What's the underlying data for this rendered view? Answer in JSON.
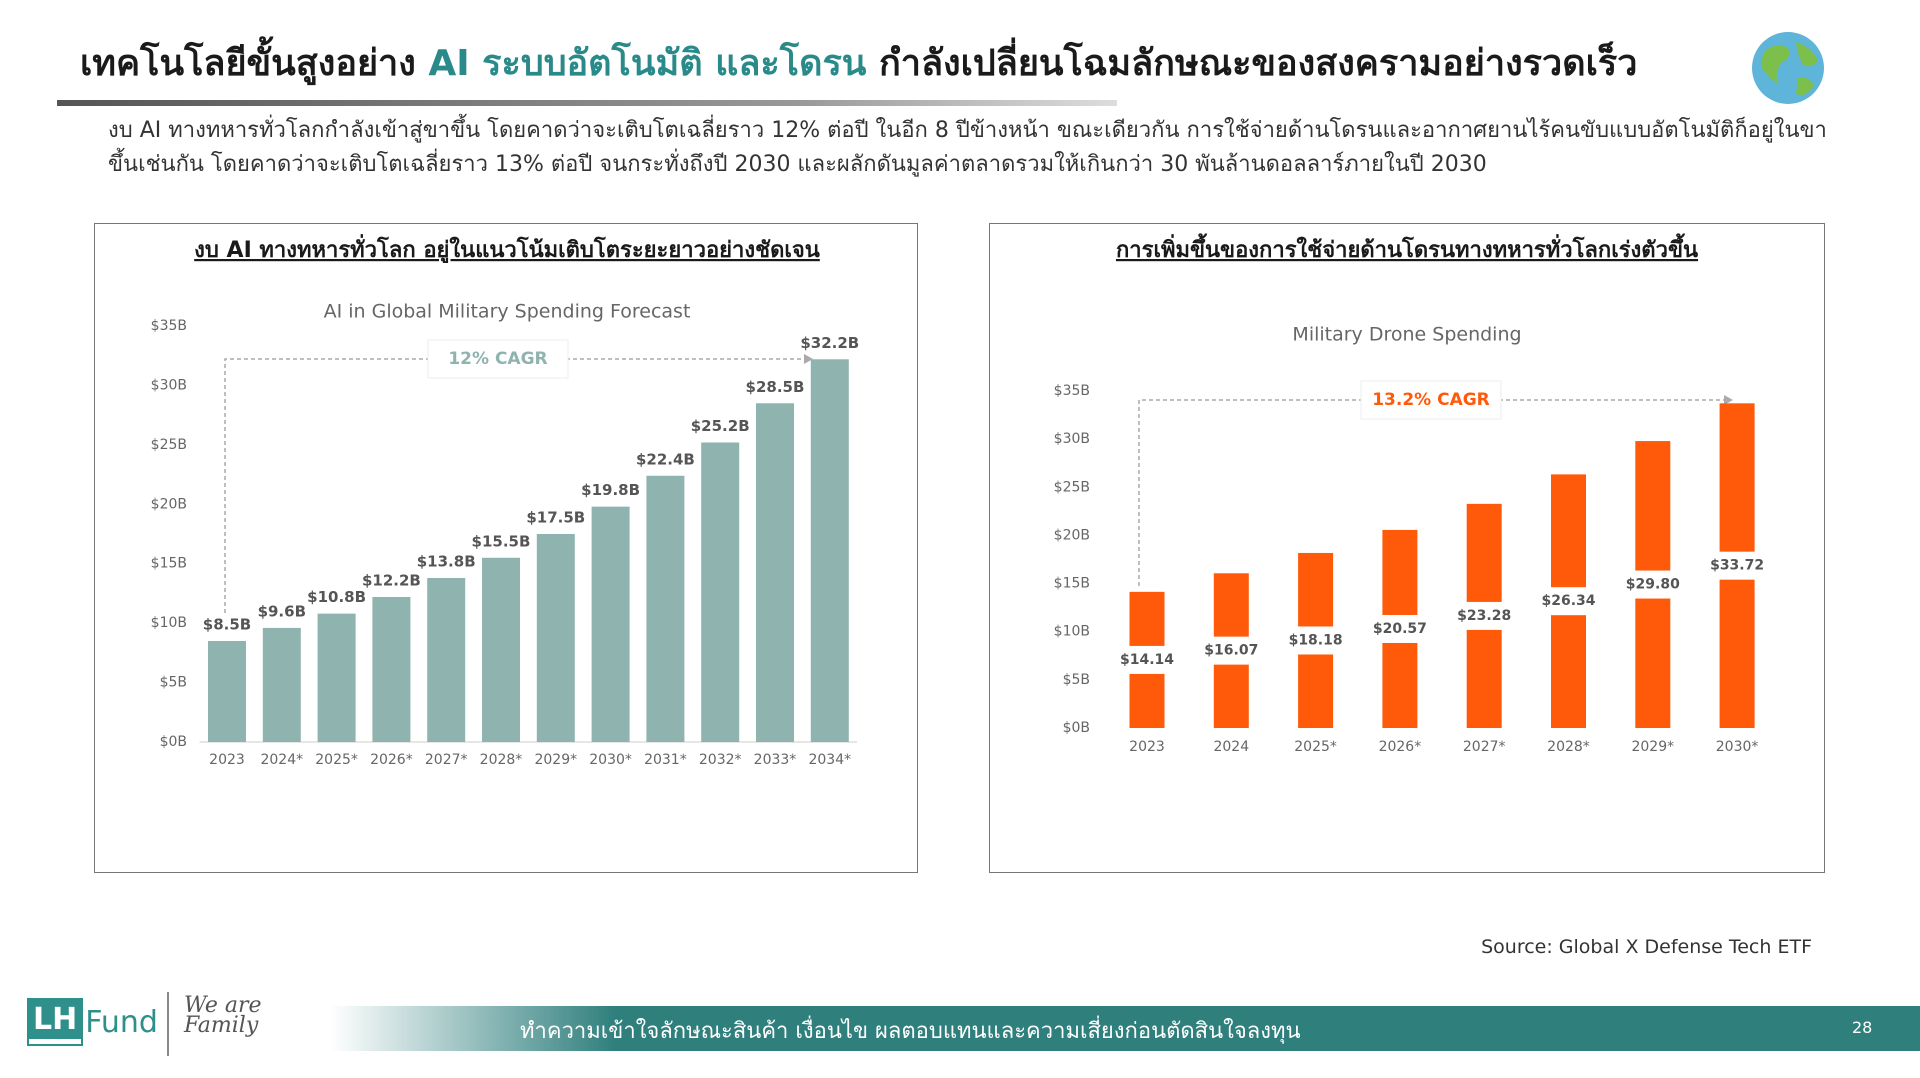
{
  "header": {
    "title": [
      "เทคโนโลยีขั้นสูงอย่าง",
      "AI ระบบอัตโนมัติ และโดรน",
      "กำลังเปลี่ยนโฉมลักษณะของสงครามอย่างรวดเร็ว"
    ],
    "description": "งบ AI ทางทหารทั่วโลกกำลังเข้าสู่ขาขึ้น โดยคาดว่าจะเติบโตเฉลี่ยราว 12% ต่อปี ในอีก 8 ปีข้างหน้า ขณะเดียวกัน การใช้จ่ายด้านโดรนและอากาศยานไร้คนขับแบบอัตโนมัติก็อยู่ในขาขึ้นเช่นกัน โดยคาดว่าจะเติบโตเฉลี่ยราว 13% ต่อปี จนกระทั่งถึงปี 2030 และผลักดันมูลค่าตลาดรวมให้เกินกว่า 30 พันล้านดอลลาร์ภายในปี 2030"
  },
  "chart_data": [
    {
      "type": "bar",
      "heading": "งบ AI ทางทหารทั่วโลก อยู่ในแนวโน้มเติบโตระยะยาวอย่างชัดเจน",
      "title": "AI in Global Military Spending Forecast",
      "categories": [
        "2023",
        "2024*",
        "2025*",
        "2026*",
        "2027*",
        "2028*",
        "2029*",
        "2030*",
        "2031*",
        "2032*",
        "2033*",
        "2034*"
      ],
      "values": [
        8.5,
        9.6,
        10.8,
        12.2,
        13.8,
        15.5,
        17.5,
        19.8,
        22.4,
        25.2,
        28.5,
        32.2
      ],
      "value_labels": [
        "$8.5B",
        "$9.6B",
        "$10.8B",
        "$12.2B",
        "$13.8B",
        "$15.5B",
        "$17.5B",
        "$19.8B",
        "$22.4B",
        "$25.2B",
        "$28.5B",
        "$32.2B"
      ],
      "value_label_position": "above",
      "color": "#8fb3ae",
      "annotation": "12% CAGR",
      "ylim": [
        0,
        35
      ],
      "yticks": [
        {
          "value": 0,
          "label": "$0B"
        },
        {
          "value": 5,
          "label": "$5B"
        },
        {
          "value": 10,
          "label": "$10B"
        },
        {
          "value": 15,
          "label": "$15B"
        },
        {
          "value": 20,
          "label": "$20B"
        },
        {
          "value": 25,
          "label": "$25B"
        },
        {
          "value": 30,
          "label": "$30B"
        },
        {
          "value": 35,
          "label": "$35B"
        }
      ]
    },
    {
      "type": "bar",
      "heading": "การเพิ่มขึ้นของการใช้จ่ายด้านโดรนทางทหารทั่วโลกเร่งตัวขึ้น",
      "title": "Military Drone Spending",
      "categories": [
        "2023",
        "2024",
        "2025*",
        "2026*",
        "2027*",
        "2028*",
        "2029*",
        "2030*"
      ],
      "values": [
        14.14,
        16.07,
        18.18,
        20.57,
        23.28,
        26.34,
        29.8,
        33.72
      ],
      "value_labels": [
        "$14.14",
        "$16.07",
        "$18.18",
        "$20.57",
        "$23.28",
        "$26.34",
        "$29.80",
        "$33.72"
      ],
      "value_label_position": "center",
      "color": "#ff5a0a",
      "annotation": "13.2% CAGR",
      "ylim": [
        0,
        35
      ],
      "yticks": [
        {
          "value": 0,
          "label": "$0B"
        },
        {
          "value": 5,
          "label": "$5B"
        },
        {
          "value": 10,
          "label": "$10B"
        },
        {
          "value": 15,
          "label": "$15B"
        },
        {
          "value": 20,
          "label": "$20B"
        },
        {
          "value": 25,
          "label": "$25B"
        },
        {
          "value": 30,
          "label": "$30B"
        },
        {
          "value": 35,
          "label": "$35B"
        }
      ]
    }
  ],
  "source": "Source: Global X Defense Tech ETF",
  "footer": {
    "logo": [
      "LH",
      "Fund"
    ],
    "tagline": "We are Family",
    "text": "ทำความเข้าใจลักษณะสินค้า เงื่อนไข ผลตอบแทนและความเสี่ยงก่อนตัดสินใจลงทุน",
    "page": "28"
  }
}
